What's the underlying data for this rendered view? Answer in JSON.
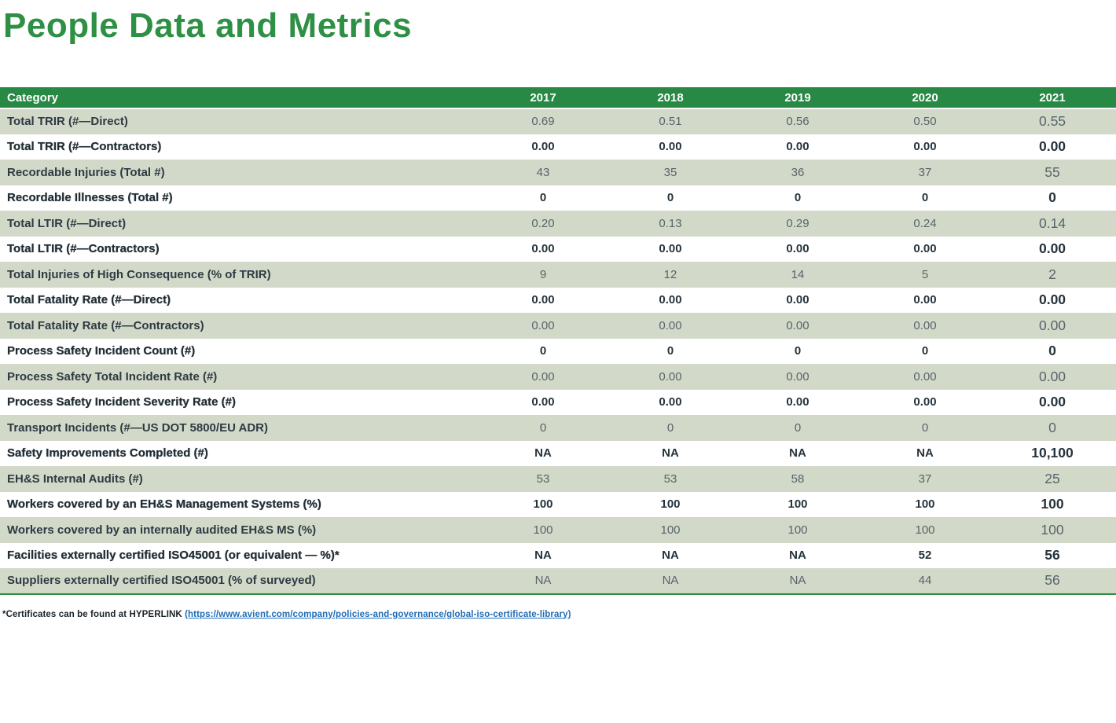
{
  "page": {
    "title": "People Data and Metrics"
  },
  "colors": {
    "title_green": "#2E9044",
    "header_green": "#288945",
    "row_green": "#D2D9C9",
    "text_dark": "#2E3A42",
    "value_gray": "#57646A",
    "border_green": "#2F8F44",
    "link_blue": "#1F6CB5"
  },
  "table": {
    "columns": [
      "Category",
      "2017",
      "2018",
      "2019",
      "2020",
      "2021"
    ],
    "rows": [
      {
        "category": "Total TRIR (#—Direct)",
        "values": [
          "0.69",
          "0.51",
          "0.56",
          "0.50",
          "0.55"
        ]
      },
      {
        "category": "Total TRIR (#—Contractors)",
        "values": [
          "0.00",
          "0.00",
          "0.00",
          "0.00",
          "0.00"
        ]
      },
      {
        "category": "Recordable Injuries (Total #)",
        "values": [
          "43",
          "35",
          "36",
          "37",
          "55"
        ]
      },
      {
        "category": "Recordable Illnesses (Total #)",
        "values": [
          "0",
          "0",
          "0",
          "0",
          "0"
        ]
      },
      {
        "category": "Total LTIR (#—Direct)",
        "values": [
          "0.20",
          "0.13",
          "0.29",
          "0.24",
          "0.14"
        ]
      },
      {
        "category": "Total LTIR (#—Contractors)",
        "values": [
          "0.00",
          "0.00",
          "0.00",
          "0.00",
          "0.00"
        ]
      },
      {
        "category": "Total Injuries of High Consequence (% of TRIR)",
        "values": [
          "9",
          "12",
          "14",
          "5",
          "2"
        ]
      },
      {
        "category": "Total Fatality Rate (#—Direct)",
        "values": [
          "0.00",
          "0.00",
          "0.00",
          "0.00",
          "0.00"
        ]
      },
      {
        "category": "Total Fatality Rate (#—Contractors)",
        "values": [
          "0.00",
          "0.00",
          "0.00",
          "0.00",
          "0.00"
        ]
      },
      {
        "category": "Process Safety Incident Count (#)",
        "values": [
          "0",
          "0",
          "0",
          "0",
          "0"
        ]
      },
      {
        "category": "Process Safety Total Incident Rate (#)",
        "values": [
          "0.00",
          "0.00",
          "0.00",
          "0.00",
          "0.00"
        ]
      },
      {
        "category": "Process Safety Incident Severity Rate (#)",
        "values": [
          "0.00",
          "0.00",
          "0.00",
          "0.00",
          "0.00"
        ]
      },
      {
        "category": "Transport Incidents (#—US DOT 5800/EU ADR)",
        "values": [
          "0",
          "0",
          "0",
          "0",
          "0"
        ]
      },
      {
        "category": "Safety Improvements Completed (#)",
        "values": [
          "NA",
          "NA",
          "NA",
          "NA",
          "10,100"
        ]
      },
      {
        "category": "EH&S Internal Audits (#)",
        "values": [
          "53",
          "53",
          "58",
          "37",
          "25"
        ]
      },
      {
        "category": "Workers covered by an EH&S Management Systems (%)",
        "values": [
          "100",
          "100",
          "100",
          "100",
          "100"
        ]
      },
      {
        "category": "Workers covered by an internally audited EH&S MS (%)",
        "values": [
          "100",
          "100",
          "100",
          "100",
          "100"
        ]
      },
      {
        "category": "Facilities externally certified ISO45001 (or equivalent — %)*",
        "values": [
          "NA",
          "NA",
          "NA",
          "52",
          "56"
        ]
      },
      {
        "category": "Suppliers externally certified ISO45001 (% of surveyed)",
        "values": [
          "NA",
          "NA",
          "NA",
          "44",
          "56"
        ]
      }
    ]
  },
  "footnote": {
    "prefix": "*Certificates can be found at HYPERLINK ",
    "link_text": "(https://www.avient.com/company/policies-and-governance/global-iso-certificate-library)"
  }
}
